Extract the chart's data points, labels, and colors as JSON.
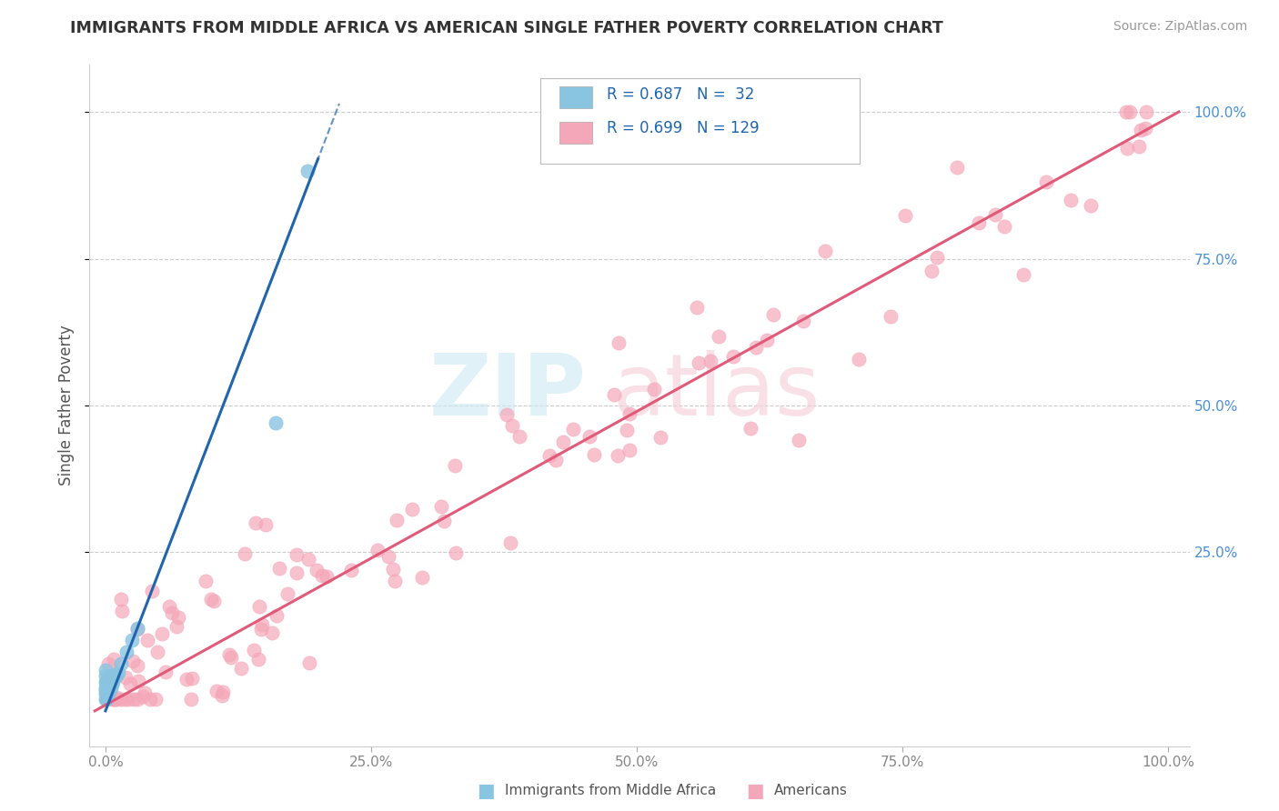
{
  "title": "IMMIGRANTS FROM MIDDLE AFRICA VS AMERICAN SINGLE FATHER POVERTY CORRELATION CHART",
  "source": "Source: ZipAtlas.com",
  "ylabel": "Single Father Poverty",
  "legend_label_blue": "Immigrants from Middle Africa",
  "legend_label_pink": "Americans",
  "r_blue": 0.687,
  "n_blue": 32,
  "r_pink": 0.699,
  "n_pink": 129,
  "blue_color": "#89c4e1",
  "pink_color": "#f4a7b9",
  "blue_line_color": "#2166ac",
  "pink_line_color": "#e05a7a",
  "xtick_labels": [
    "0.0%",
    "25.0%",
    "50.0%",
    "75.0%",
    "100.0%"
  ],
  "xtick_vals": [
    0.0,
    0.25,
    0.5,
    0.75,
    1.0
  ],
  "ytick_labels": [
    "25.0%",
    "50.0%",
    "75.0%",
    "100.0%"
  ],
  "ytick_vals": [
    0.25,
    0.5,
    0.75,
    1.0
  ],
  "background_color": "#ffffff",
  "grid_color": "#cccccc"
}
